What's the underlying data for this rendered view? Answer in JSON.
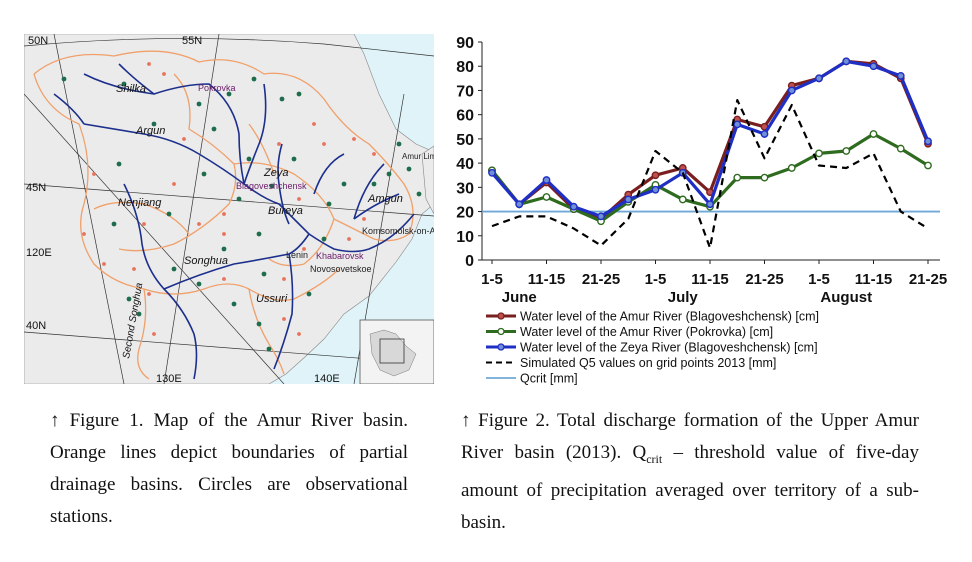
{
  "map": {
    "lat_labels": [
      "50N",
      "55N",
      "45N",
      "40N"
    ],
    "lon_labels": [
      "120E",
      "130E",
      "140E"
    ],
    "river_labels": [
      "Shilka",
      "Argun",
      "Zeya",
      "Bureya",
      "Nenjiang",
      "Songhua",
      "Ussuri",
      "Amgun",
      "Second Songhua"
    ],
    "station_labels": [
      "Pokrovka",
      "Blagoveshchensk",
      "Khabarovsk",
      "Komsomolsk-on-Amur",
      "Lenin",
      "Novosovetskoe"
    ],
    "estuary_label": "Amur Liman",
    "colors": {
      "sea": "#dff3f8",
      "land": "#ebebeb",
      "river": "#1c2f8c",
      "boundary": "#f0a06a",
      "station_green": "#1e6e4e",
      "station_orange": "#e8725a",
      "grid": "#333333"
    }
  },
  "figure1_caption": {
    "arrow": "↑",
    "text": "Figure 1. Map of the Amur River basin. Orange lines depict boundaries of partial drainage basins. Circles are observational stations."
  },
  "figure2_caption": {
    "arrow": "↑",
    "before_sub": "Figure 2. Total discharge formation of the Upper Amur River basin (2013). Q",
    "sub": "crit",
    "after_sub": " – threshold value of five-day amount of precipitation averaged over territory of a sub-basin."
  },
  "chart_data": {
    "type": "line",
    "ylim": [
      0,
      90
    ],
    "yticks": [
      0,
      10,
      20,
      30,
      40,
      50,
      60,
      70,
      80,
      90
    ],
    "x_tick_labels": [
      "1-5",
      "11-15",
      "21-25",
      "1-5",
      "11-15",
      "21-25",
      "1-5",
      "11-15",
      "21-25"
    ],
    "month_labels": [
      "June",
      "July",
      "August"
    ],
    "series": [
      {
        "name": "Water level of the Amur River (Blagoveshchensk) [cm]",
        "color": "#7a1f1f",
        "marker_color": "#c0504d",
        "values": [
          37,
          23,
          32,
          21,
          17,
          27,
          35,
          38,
          28,
          58,
          55,
          72,
          75,
          82,
          81,
          75,
          48
        ]
      },
      {
        "name": "Water level of the Amur River (Pokrovka) [cm]",
        "color": "#2e6b1e",
        "marker_color": "#ffffff",
        "values": [
          37,
          23,
          26,
          21,
          16,
          24,
          31,
          25,
          22,
          34,
          34,
          38,
          44,
          45,
          52,
          46,
          39
        ]
      },
      {
        "name": "Water level of the Zeya River (Blagoveshchensk) [cm]",
        "color": "#1f2fc4",
        "marker_color": "#6f8fd6",
        "values": [
          36,
          23,
          33,
          22,
          18,
          25,
          29,
          36,
          23,
          56,
          52,
          70,
          75,
          82,
          80,
          76,
          49
        ]
      },
      {
        "name": "Simulated Q5 values on grid points 2013 [mm]",
        "color": "#000000",
        "dashed": true,
        "values": [
          14,
          18,
          18,
          13,
          6,
          17,
          45,
          36,
          5,
          66,
          42,
          64,
          39,
          38,
          44,
          20,
          13
        ]
      },
      {
        "name": "Qcrit [mm]",
        "color": "#6fa8d6",
        "constant": 20
      }
    ]
  }
}
